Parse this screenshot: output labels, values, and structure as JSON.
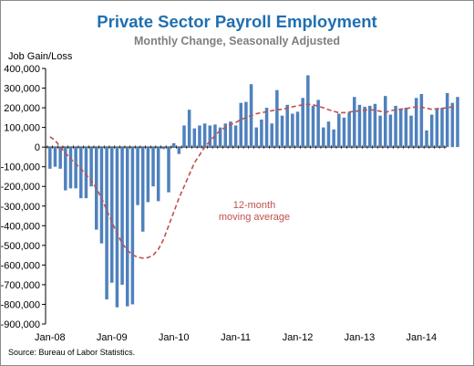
{
  "chart_data": {
    "type": "bar",
    "title": "Private Sector Payroll Employment",
    "subtitle": "Monthly Change, Seasonally Adjusted",
    "ylabel": "Job Gain/Loss",
    "xlabel": "",
    "ylim": [
      -900000,
      400000
    ],
    "yticks": [
      400000,
      300000,
      200000,
      100000,
      0,
      -100000,
      -200000,
      -300000,
      -400000,
      -500000,
      -600000,
      -700000,
      -800000,
      -900000
    ],
    "ytick_labels": [
      "400,000",
      "300,000",
      "200,000",
      "100,000",
      "0",
      "-100,000",
      "-200,000",
      "-300,000",
      "-400,000",
      "-500,000",
      "-600,000",
      "-700,000",
      "-800,000",
      "-900,000"
    ],
    "x_tick_labels": [
      "Jan-08",
      "Jan-09",
      "Jan-10",
      "Jan-11",
      "Jan-12",
      "Jan-13",
      "Jan-14"
    ],
    "grid": false,
    "colors": {
      "bars": "#4f81bd",
      "moving_average": "#c0504d",
      "title": "#1f6fb2",
      "subtitle": "#7f7f7f"
    },
    "series": [
      {
        "type": "bar",
        "values": [
          -110000,
          -100000,
          -110000,
          -220000,
          -210000,
          -210000,
          -260000,
          -260000,
          -200000,
          -420000,
          -490000,
          -775000,
          -690000,
          -815000,
          -700000,
          -810000,
          -800000,
          -295000,
          -430000,
          -280000,
          -200000,
          -275000,
          -10000,
          -230000,
          20000,
          -35000,
          110000,
          190000,
          95000,
          110000,
          120000,
          110000,
          115000,
          100000,
          120000,
          130000,
          110000,
          225000,
          230000,
          320000,
          100000,
          140000,
          200000,
          120000,
          290000,
          160000,
          215000,
          170000,
          180000,
          250000,
          365000,
          210000,
          240000,
          100000,
          130000,
          90000,
          170000,
          150000,
          175000,
          255000,
          215000,
          205000,
          210000,
          220000,
          160000,
          260000,
          165000,
          210000,
          195000,
          200000,
          160000,
          250000,
          270000,
          85000,
          165000,
          195000,
          200000,
          275000,
          225000,
          255000
        ]
      },
      {
        "type": "line",
        "name": "12-month moving average",
        "values": [
          52000,
          35000,
          0,
          -30000,
          -60000,
          -85000,
          -110000,
          -140000,
          -170000,
          -210000,
          -260000,
          -320000,
          -380000,
          -440000,
          -490000,
          -525000,
          -548000,
          -560000,
          -565000,
          -562000,
          -550000,
          -520000,
          -470000,
          -400000,
          -330000,
          -260000,
          -200000,
          -140000,
          -80000,
          -40000,
          0,
          30000,
          60000,
          85000,
          100000,
          115000,
          125000,
          140000,
          150000,
          160000,
          170000,
          175000,
          180000,
          185000,
          190000,
          192000,
          198000,
          205000,
          210000,
          215000,
          218000,
          215000,
          208000,
          200000,
          190000,
          182000,
          175000,
          175000,
          178000,
          182000,
          185000,
          188000,
          190000,
          188000,
          182000,
          176000,
          185000,
          190000,
          193000,
          196000,
          200000,
          205000,
          203000,
          198000,
          192000,
          195000,
          197000,
          200000,
          205000,
          208000
        ]
      }
    ]
  },
  "labels": {
    "title": "Private Sector Payroll Employment",
    "subtitle": "Monthly Change, Seasonally Adjusted",
    "ylabel": "Job Gain/Loss",
    "annotation_line1": "12-month",
    "annotation_line2": "moving average",
    "source": "Source: Bureau of Labor Statistics."
  }
}
